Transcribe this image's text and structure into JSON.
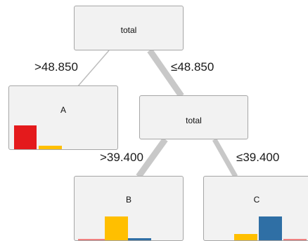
{
  "colors": {
    "edge": "#c8c8c8",
    "edge_thin": "#bdbdbd",
    "node_bg": "#f2f2f2",
    "node_border": "#a6a6a6",
    "class_1": "#e41a1c",
    "class_2": "#ffbf00",
    "class_3": "#2f6fa5",
    "class_4": "#f08080"
  },
  "nodes": {
    "root": {
      "label": "total"
    },
    "split": {
      "label": "total"
    },
    "leaf_a": {
      "label": "A",
      "bars": [
        {
          "class": "class_1",
          "fraction": 0.85
        },
        {
          "class": "class_2",
          "fraction": 0.12
        }
      ]
    },
    "leaf_b": {
      "label": "B",
      "bars": [
        {
          "class": "class_4",
          "fraction": 0.04
        },
        {
          "class": "class_2",
          "fraction": 0.85
        },
        {
          "class": "class_3",
          "fraction": 0.08
        }
      ]
    },
    "leaf_c": {
      "label": "C",
      "bars": [
        {
          "class": "class_2",
          "fraction": 0.22
        },
        {
          "class": "class_3",
          "fraction": 0.85
        },
        {
          "class": "class_4",
          "fraction": 0.05
        }
      ]
    }
  },
  "edges": {
    "root_left": {
      "label": ">48.850",
      "weight": "thin"
    },
    "root_right": {
      "label": "≤48.850",
      "weight": "thick"
    },
    "split_left": {
      "label": ">39.400",
      "weight": "thick"
    },
    "split_right": {
      "label": "≤39.400",
      "weight": "medium"
    }
  }
}
